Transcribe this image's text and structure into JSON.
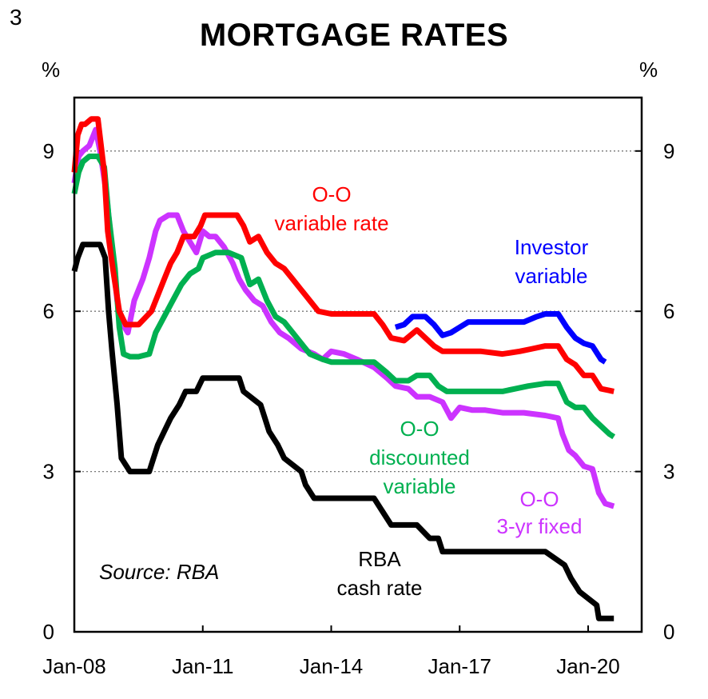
{
  "page_number": "3",
  "chart_data": {
    "type": "line",
    "title": "MORTGAGE RATES",
    "ylabel_left": "%",
    "ylabel_right": "%",
    "ylim": [
      0,
      10
    ],
    "xlim": [
      2008.0,
      2021.25
    ],
    "yticks": [
      0,
      3,
      6,
      9
    ],
    "xticks": [
      {
        "value": 2008.0,
        "label": "Jan-08"
      },
      {
        "value": 2011.0,
        "label": "Jan-11"
      },
      {
        "value": 2014.0,
        "label": "Jan-14"
      },
      {
        "value": 2017.0,
        "label": "Jan-17"
      },
      {
        "value": 2020.0,
        "label": "Jan-20"
      }
    ],
    "grid": "horizontal dotted",
    "source": "Source: RBA",
    "series": [
      {
        "name": "O-O variable rate",
        "label_lines": [
          "O-O",
          "variable rate"
        ],
        "color": "#ff0000",
        "x": [
          2008.0,
          2008.08,
          2008.17,
          2008.25,
          2008.4,
          2008.55,
          2008.7,
          2008.78,
          2008.9,
          2009.05,
          2009.2,
          2009.3,
          2009.5,
          2009.8,
          2009.95,
          2010.1,
          2010.25,
          2010.4,
          2010.55,
          2010.8,
          2010.95,
          2011.05,
          2011.2,
          2011.5,
          2011.8,
          2011.95,
          2012.1,
          2012.3,
          2012.5,
          2012.7,
          2012.9,
          2013.1,
          2013.3,
          2013.5,
          2013.7,
          2014.0,
          2014.5,
          2015.0,
          2015.2,
          2015.4,
          2015.7,
          2016.0,
          2016.2,
          2016.4,
          2016.6,
          2016.8,
          2017.0,
          2017.5,
          2018.0,
          2018.4,
          2018.7,
          2019.0,
          2019.3,
          2019.5,
          2019.7,
          2019.9,
          2020.1,
          2020.3,
          2020.6
        ],
        "values": [
          8.6,
          9.3,
          9.5,
          9.5,
          9.6,
          9.6,
          8.6,
          7.5,
          6.8,
          6.0,
          5.75,
          5.75,
          5.75,
          6.0,
          6.3,
          6.6,
          6.9,
          7.1,
          7.4,
          7.4,
          7.6,
          7.8,
          7.8,
          7.8,
          7.8,
          7.6,
          7.3,
          7.4,
          7.1,
          6.9,
          6.8,
          6.6,
          6.4,
          6.2,
          6.0,
          5.95,
          5.95,
          5.95,
          5.75,
          5.5,
          5.45,
          5.65,
          5.5,
          5.35,
          5.25,
          5.25,
          5.25,
          5.25,
          5.2,
          5.25,
          5.3,
          5.35,
          5.35,
          5.1,
          5.0,
          4.8,
          4.8,
          4.55,
          4.5
        ]
      },
      {
        "name": "Investor variable",
        "label_lines": [
          "Investor",
          "variable"
        ],
        "color": "#0000ff",
        "x": [
          2015.5,
          2015.7,
          2015.9,
          2016.2,
          2016.4,
          2016.6,
          2016.8,
          2017.0,
          2017.2,
          2017.5,
          2018.0,
          2018.5,
          2018.8,
          2019.0,
          2019.3,
          2019.5,
          2019.7,
          2019.9,
          2020.1,
          2020.3,
          2020.4
        ],
        "values": [
          5.7,
          5.75,
          5.9,
          5.9,
          5.75,
          5.55,
          5.6,
          5.7,
          5.8,
          5.8,
          5.8,
          5.8,
          5.9,
          5.95,
          5.95,
          5.7,
          5.5,
          5.4,
          5.35,
          5.1,
          5.05
        ]
      },
      {
        "name": "O-O discounted variable",
        "label_lines": [
          "O-O",
          "discounted",
          "variable"
        ],
        "color": "#00b050",
        "x": [
          2008.0,
          2008.1,
          2008.2,
          2008.35,
          2008.55,
          2008.7,
          2008.8,
          2008.95,
          2009.05,
          2009.15,
          2009.3,
          2009.5,
          2009.75,
          2009.9,
          2010.1,
          2010.3,
          2010.5,
          2010.7,
          2010.9,
          2011.0,
          2011.3,
          2011.6,
          2011.9,
          2012.1,
          2012.3,
          2012.5,
          2012.7,
          2012.9,
          2013.1,
          2013.3,
          2013.5,
          2013.8,
          2014.0,
          2014.5,
          2015.0,
          2015.3,
          2015.5,
          2015.8,
          2016.0,
          2016.3,
          2016.5,
          2016.7,
          2017.0,
          2017.5,
          2018.0,
          2018.3,
          2018.6,
          2019.0,
          2019.3,
          2019.5,
          2019.7,
          2019.9,
          2020.1,
          2020.3,
          2020.5,
          2020.6
        ],
        "values": [
          8.2,
          8.6,
          8.8,
          8.9,
          8.9,
          8.7,
          7.8,
          6.8,
          5.7,
          5.2,
          5.15,
          5.15,
          5.2,
          5.6,
          5.9,
          6.2,
          6.5,
          6.7,
          6.8,
          7.0,
          7.1,
          7.1,
          7.0,
          6.5,
          6.6,
          6.2,
          5.9,
          5.8,
          5.6,
          5.4,
          5.2,
          5.1,
          5.05,
          5.05,
          5.05,
          4.85,
          4.7,
          4.7,
          4.8,
          4.8,
          4.6,
          4.5,
          4.5,
          4.5,
          4.5,
          4.55,
          4.6,
          4.65,
          4.65,
          4.3,
          4.2,
          4.2,
          4.0,
          3.85,
          3.7,
          3.65
        ]
      },
      {
        "name": "O-O 3-yr fixed",
        "label_lines": [
          "O-O",
          "3-yr fixed"
        ],
        "color": "#cc33ff",
        "x": [
          2008.0,
          2008.1,
          2008.2,
          2008.35,
          2008.5,
          2008.6,
          2008.75,
          2008.9,
          2009.0,
          2009.1,
          2009.25,
          2009.4,
          2009.6,
          2009.75,
          2009.9,
          2010.0,
          2010.2,
          2010.4,
          2010.55,
          2010.7,
          2010.85,
          2011.0,
          2011.15,
          2011.3,
          2011.5,
          2011.7,
          2011.85,
          2012.0,
          2012.2,
          2012.4,
          2012.6,
          2012.8,
          2013.0,
          2013.3,
          2013.6,
          2013.8,
          2014.0,
          2014.3,
          2014.6,
          2015.0,
          2015.3,
          2015.5,
          2015.8,
          2016.0,
          2016.3,
          2016.6,
          2016.8,
          2017.0,
          2017.3,
          2017.6,
          2018.0,
          2018.5,
          2019.0,
          2019.3,
          2019.4,
          2019.55,
          2019.7,
          2019.9,
          2020.1,
          2020.25,
          2020.4,
          2020.6
        ],
        "values": [
          8.4,
          8.9,
          9.0,
          9.1,
          9.4,
          9.0,
          8.2,
          7.0,
          6.2,
          5.8,
          5.6,
          6.2,
          6.6,
          7.0,
          7.5,
          7.7,
          7.8,
          7.8,
          7.5,
          7.3,
          7.1,
          7.5,
          7.4,
          7.4,
          7.2,
          6.9,
          6.6,
          6.4,
          6.2,
          6.1,
          5.8,
          5.6,
          5.5,
          5.3,
          5.2,
          5.1,
          5.25,
          5.2,
          5.1,
          4.95,
          4.75,
          4.6,
          4.55,
          4.4,
          4.4,
          4.3,
          4.0,
          4.2,
          4.15,
          4.15,
          4.1,
          4.1,
          4.05,
          4.0,
          3.7,
          3.4,
          3.3,
          3.1,
          3.05,
          2.6,
          2.4,
          2.35
        ]
      },
      {
        "name": "RBA cash rate",
        "label_lines": [
          "RBA",
          "cash rate"
        ],
        "color": "#000000",
        "x": [
          2008.0,
          2008.08,
          2008.2,
          2008.6,
          2008.72,
          2008.8,
          2008.88,
          2009.0,
          2009.1,
          2009.3,
          2009.75,
          2009.85,
          2009.95,
          2010.1,
          2010.25,
          2010.45,
          2010.6,
          2010.85,
          2011.0,
          2011.85,
          2011.95,
          2012.35,
          2012.45,
          2012.55,
          2012.75,
          2012.9,
          2013.3,
          2013.4,
          2013.6,
          2014.0,
          2014.5,
          2015.0,
          2015.2,
          2015.4,
          2016.0,
          2016.3,
          2016.5,
          2016.6,
          2017.0,
          2018.0,
          2019.0,
          2019.45,
          2019.6,
          2019.8,
          2020.2,
          2020.25,
          2020.6
        ],
        "values": [
          6.75,
          7.0,
          7.25,
          7.25,
          7.0,
          6.0,
          5.25,
          4.25,
          3.25,
          3.0,
          3.0,
          3.25,
          3.5,
          3.75,
          4.0,
          4.25,
          4.5,
          4.5,
          4.75,
          4.75,
          4.5,
          4.25,
          4.0,
          3.75,
          3.5,
          3.25,
          3.0,
          2.75,
          2.5,
          2.5,
          2.5,
          2.5,
          2.25,
          2.0,
          2.0,
          1.75,
          1.75,
          1.5,
          1.5,
          1.5,
          1.5,
          1.25,
          1.0,
          0.75,
          0.5,
          0.25,
          0.25
        ]
      }
    ]
  }
}
